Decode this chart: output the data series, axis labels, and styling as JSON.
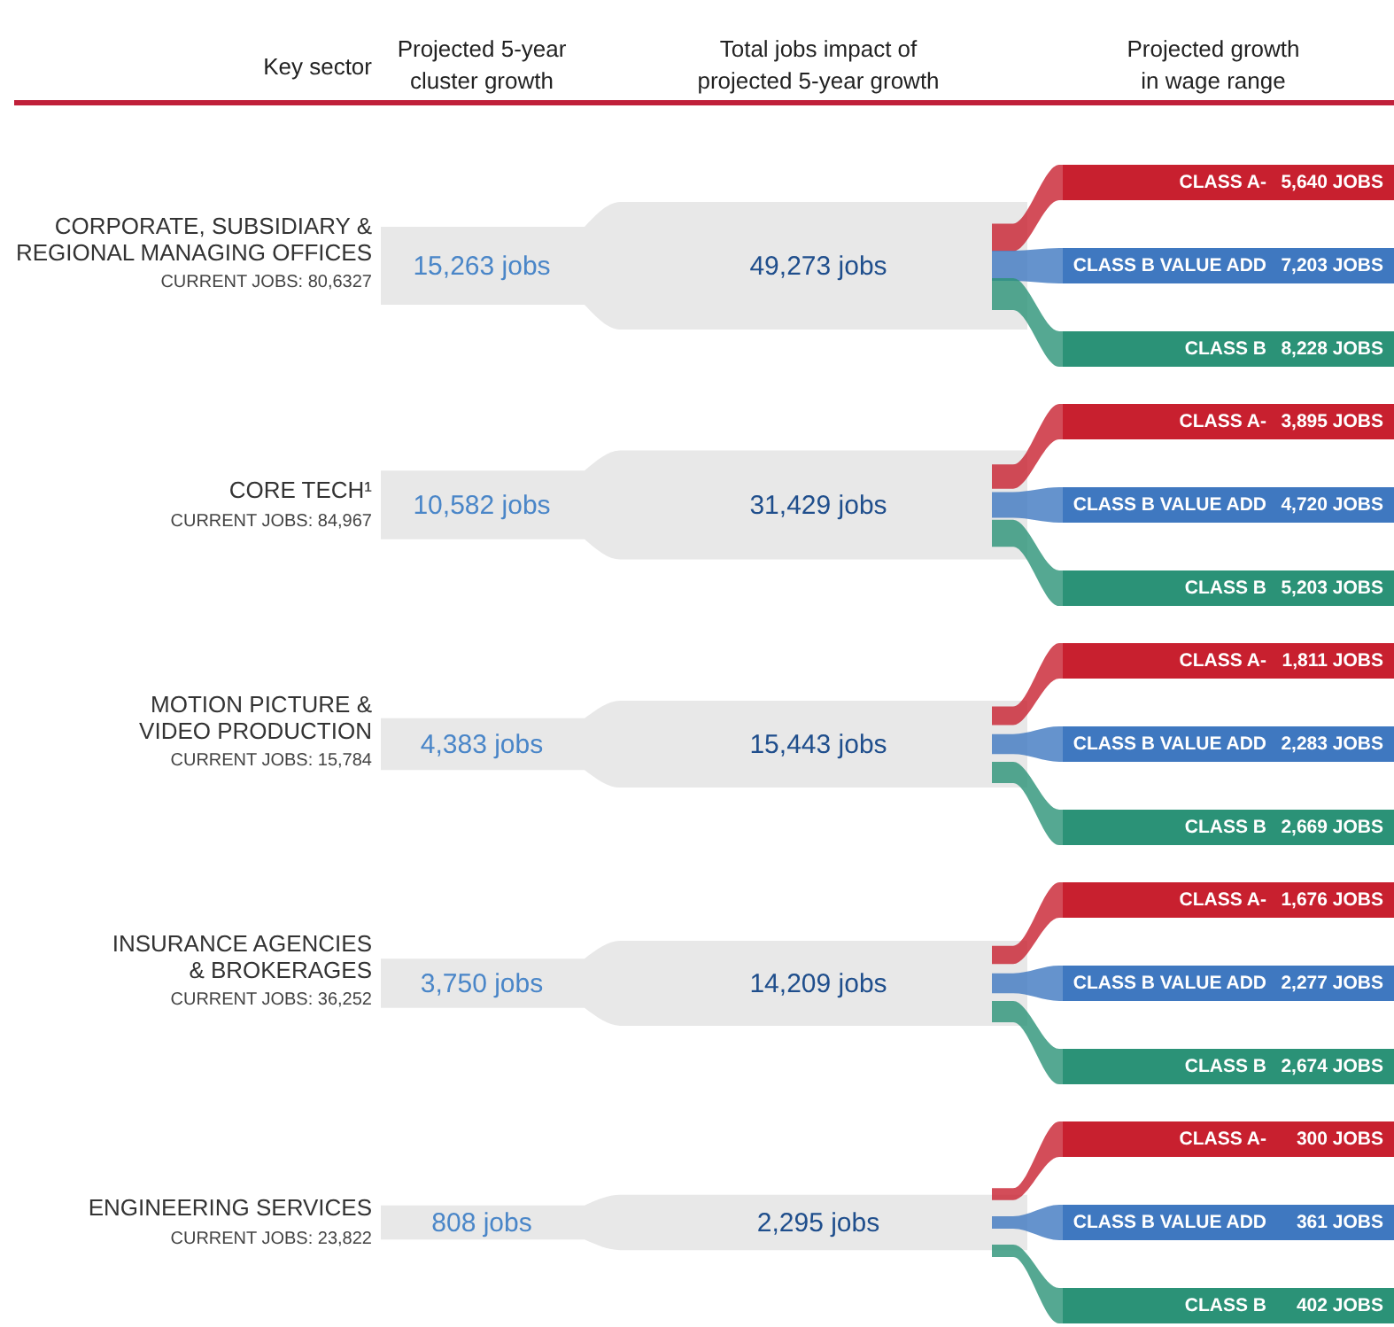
{
  "chart_data": {
    "type": "other",
    "ylabel": "Key sector",
    "annotations": [
      "Projected 5-year\ncluster growth",
      "Total jobs impact of\nprojected 5-year growth",
      "Projected growth\nin wage range",
      "CURRENT JOBS: 80,6327",
      "CURRENT JOBS: 84,967",
      "CURRENT JOBS: 15,784",
      "CURRENT JOBS: 36,252",
      "CURRENT JOBS: 23,822"
    ],
    "categories": [
      "CORPORATE, SUBSIDIARY &\nREGIONAL MANAGING OFFICES",
      "CORE TECH¹",
      "MOTION PICTURE &\nVIDEO PRODUCTION",
      "INSURANCE AGENCIES\n& BROKERAGES",
      "ENGINEERING SERVICES"
    ],
    "series": [
      {
        "values": [
          15263,
          10582,
          4383,
          3750,
          808
        ],
        "value_labels": [
          "15,263 jobs",
          "10,582 jobs",
          "4,383 jobs",
          "3,750 jobs",
          "808 jobs"
        ]
      },
      {
        "values": [
          49273,
          31429,
          15443,
          14209,
          2295
        ],
        "value_labels": [
          "49,273 jobs",
          "31,429 jobs",
          "15,443 jobs",
          "14,209 jobs",
          "2,295 jobs"
        ]
      },
      {
        "name": "CLASS A-",
        "color": "#c8202f",
        "values": [
          5640,
          3895,
          1811,
          1676,
          300
        ],
        "value_labels": [
          "5,640 JOBS",
          "3,895 JOBS",
          "1,811 JOBS",
          "1,676 JOBS",
          "300 JOBS"
        ]
      },
      {
        "name": "CLASS B VALUE ADD",
        "color": "#3f78c0",
        "values": [
          7203,
          4720,
          2283,
          2277,
          361
        ],
        "value_labels": [
          "7,203 JOBS",
          "4,720 JOBS",
          "2,283 JOBS",
          "2,277 JOBS",
          "361 JOBS"
        ]
      },
      {
        "name": "CLASS B",
        "color": "#2b9277",
        "values": [
          8228,
          5203,
          2669,
          2674,
          402
        ],
        "value_labels": [
          "8,228 JOBS",
          "5,203 JOBS",
          "2,669 JOBS",
          "2,674 JOBS",
          "402 JOBS"
        ]
      }
    ]
  }
}
